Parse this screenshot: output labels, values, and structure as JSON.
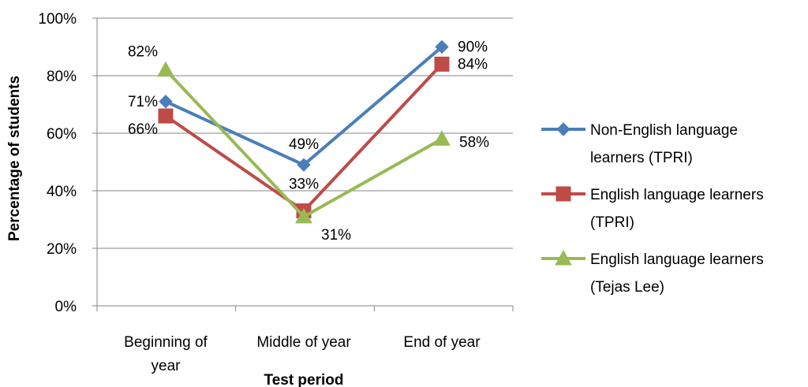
{
  "chart_data": {
    "type": "line",
    "title": "",
    "xlabel": "Test period",
    "ylabel": "Percentage of students",
    "categories": [
      "Beginning of year",
      "Middle of year",
      "End of year"
    ],
    "category_label_lines": [
      [
        "Beginning of",
        "year"
      ],
      [
        "Middle of year"
      ],
      [
        "End of year"
      ]
    ],
    "ylim": [
      0,
      100
    ],
    "yticks": [
      "0%",
      "20%",
      "40%",
      "60%",
      "80%",
      "100%"
    ],
    "grid": true,
    "legend_position": "right",
    "series": [
      {
        "name": "Non-English language learners (TPRI)",
        "legend_lines": [
          "Non-English language",
          "learners (TPRI)"
        ],
        "values": [
          71,
          49,
          90
        ],
        "labels": [
          "71%",
          "49%",
          "90%"
        ],
        "color": "#4a7ebb",
        "marker": "diamond"
      },
      {
        "name": "English language learners (TPRI)",
        "legend_lines": [
          "English language learners",
          "(TPRI)"
        ],
        "values": [
          66,
          33,
          84
        ],
        "labels": [
          "66%",
          "33%",
          "84%"
        ],
        "color": "#be4b48",
        "marker": "square"
      },
      {
        "name": "English language learners (Tejas Lee)",
        "legend_lines": [
          "English language learners",
          "(Tejas Lee)"
        ],
        "values": [
          82,
          31,
          58
        ],
        "labels": [
          "82%",
          "31%",
          "58%"
        ],
        "color": "#98b954",
        "marker": "triangle"
      }
    ]
  }
}
